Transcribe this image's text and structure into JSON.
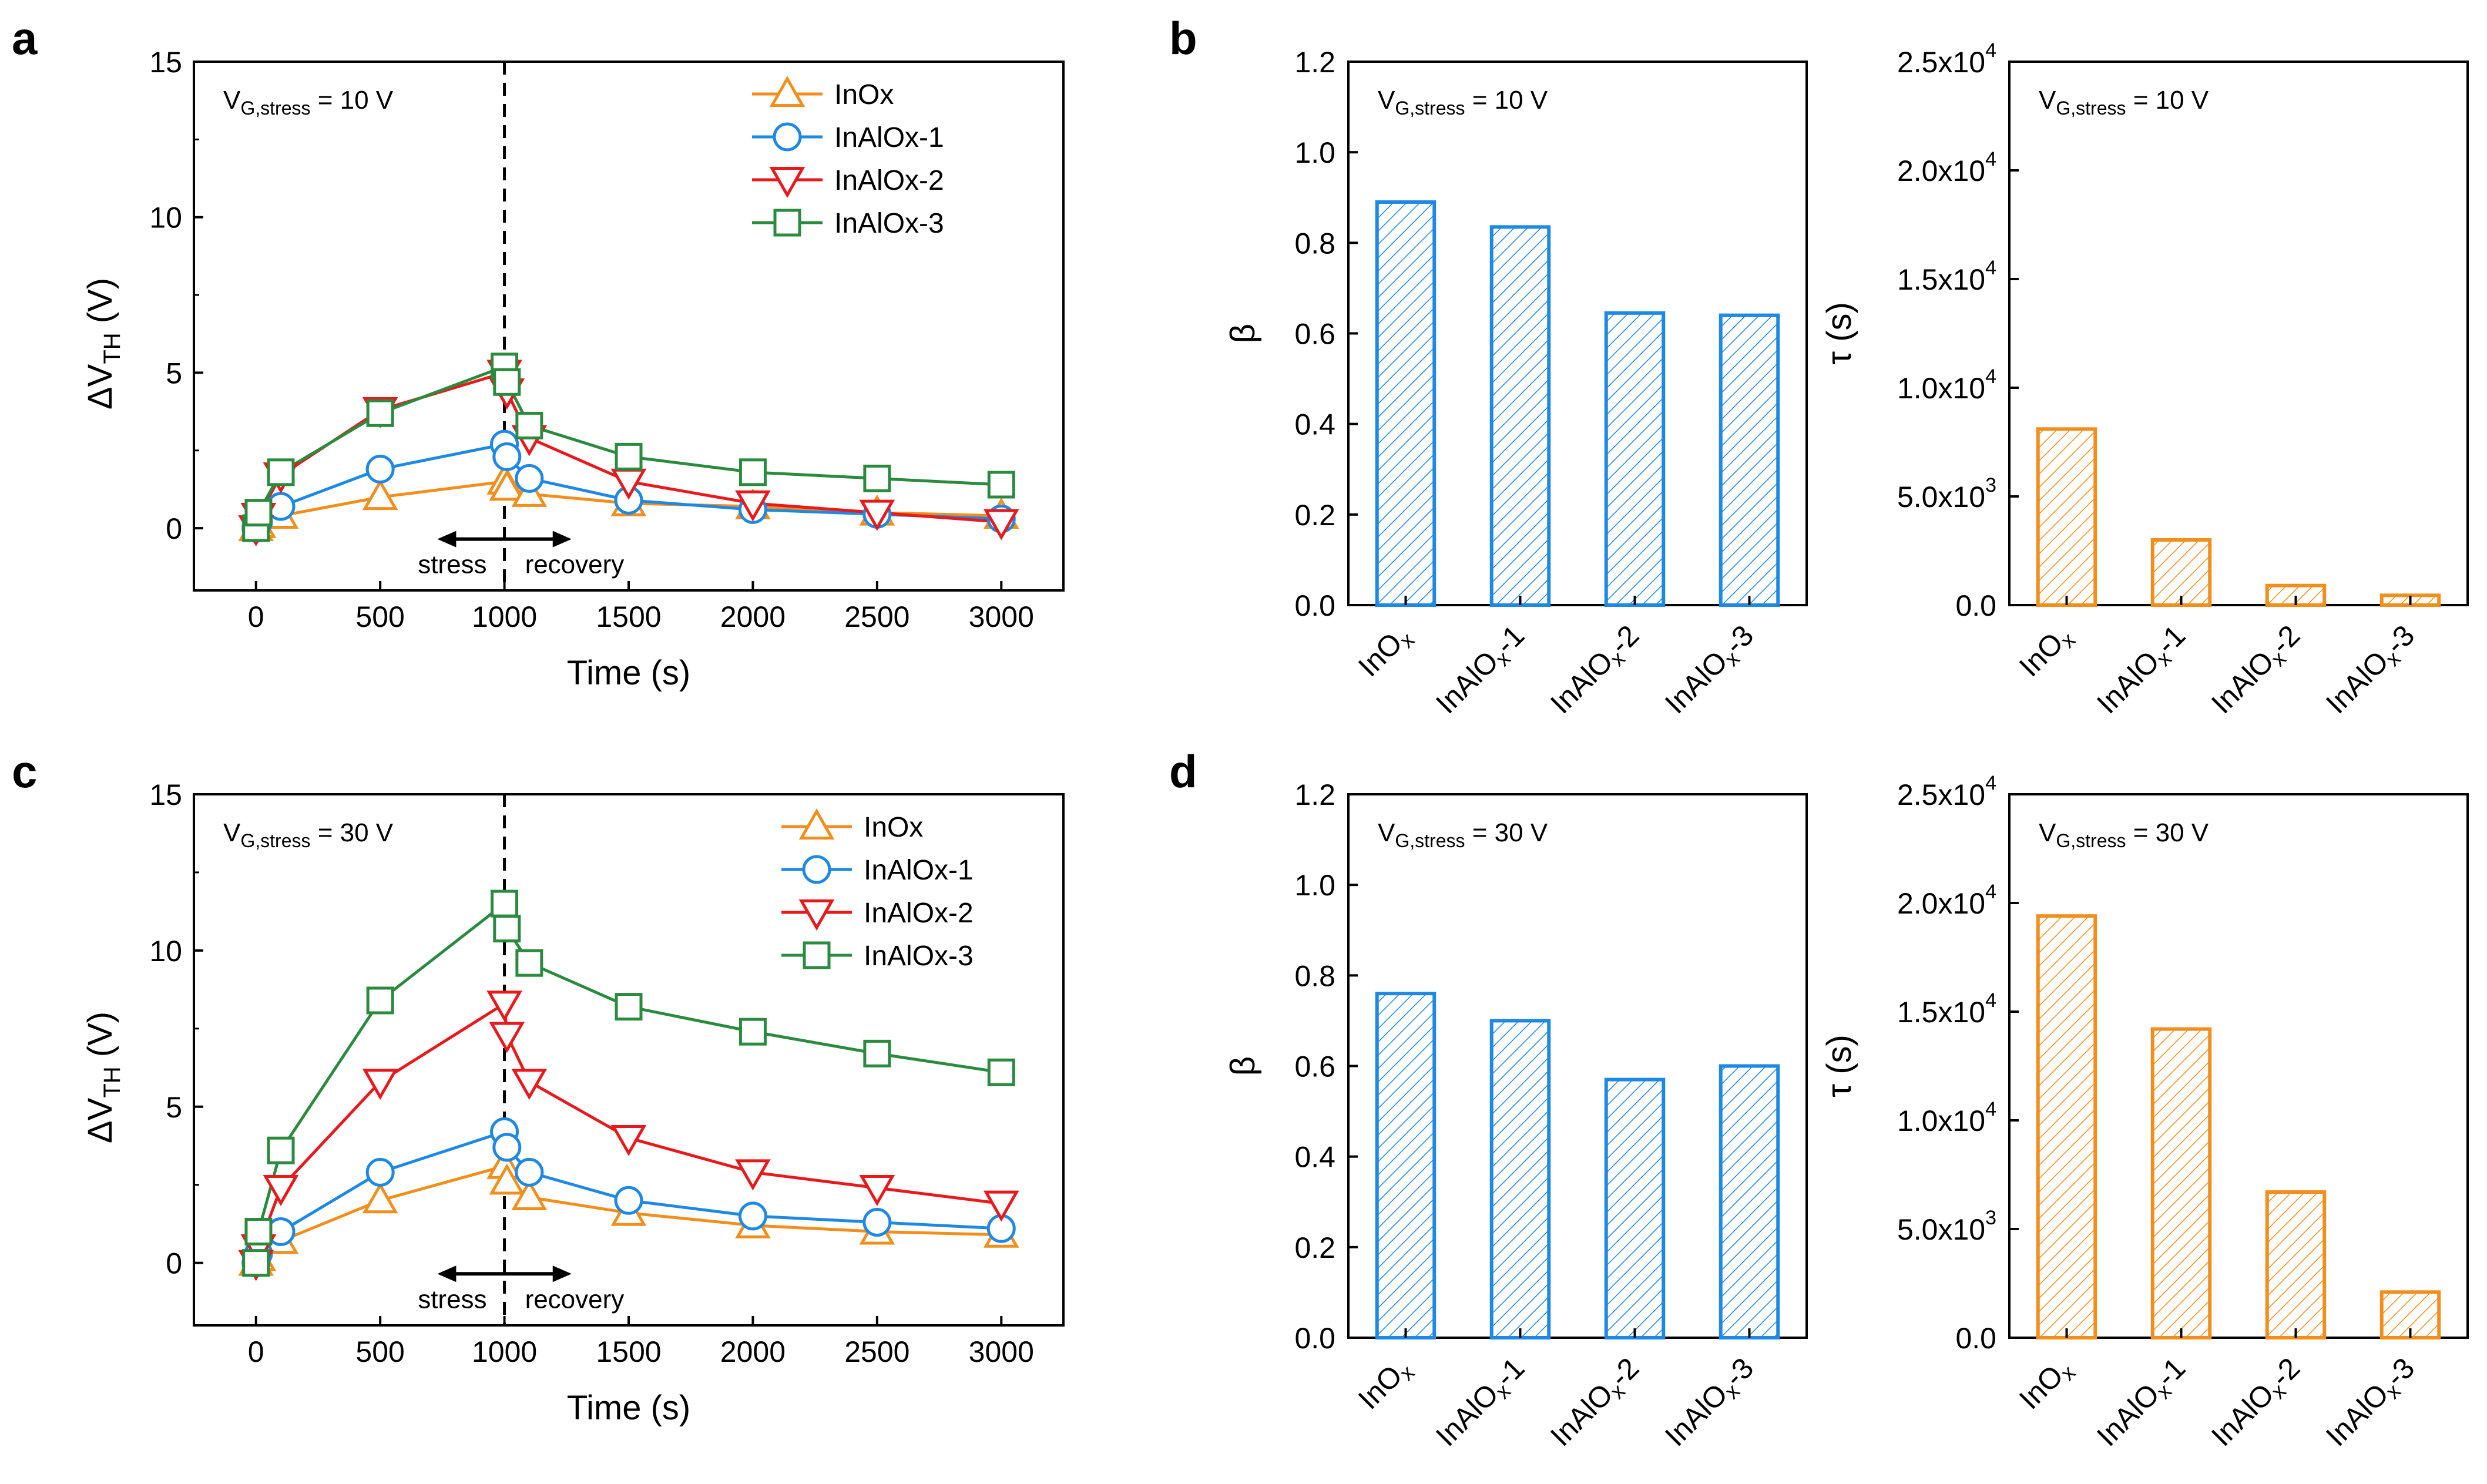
{
  "panel_labels": [
    "a",
    "b",
    "c",
    "d"
  ],
  "colors": {
    "InOx": "#f28e1c",
    "InAlOx-1": "#1e88e5",
    "InAlOx-2": "#e8191c",
    "InAlOx-3": "#2a8a3e",
    "beta_bar": "#1e88e5",
    "tau_bar": "#f28e1c"
  },
  "chart_data": [
    {
      "id": "a",
      "type": "line",
      "annotation_main": "V",
      "annotation_sub": "G,stress",
      "annotation_value": " = 10 V",
      "xlabel": "Time (s)",
      "ylabel_main": "ΔV",
      "ylabel_sub": "TH",
      "ylabel_unit": " (V)",
      "xlim": [
        -250,
        3250
      ],
      "ylim": [
        -2,
        15
      ],
      "xticks": [
        "0",
        "500",
        "1000",
        "1500",
        "2000",
        "2500",
        "3000"
      ],
      "xtick_values": [
        0,
        500,
        1000,
        1500,
        2000,
        2500,
        3000
      ],
      "yticks": [
        "0",
        "5",
        "10",
        "15"
      ],
      "ytick_values": [
        0,
        5,
        10,
        15
      ],
      "stress_label": "stress",
      "recovery_label": "recovery",
      "legend": [
        "InOx",
        "InAlOx-1",
        "InAlOx-2",
        "InAlOx-3"
      ],
      "series": [
        {
          "name": "InOx",
          "marker": "triangle-up",
          "x": [
            0,
            10,
            100,
            500,
            1000,
            1010,
            1100,
            1500,
            2000,
            2500,
            3000
          ],
          "y": [
            0,
            0.1,
            0.4,
            1.0,
            1.5,
            1.3,
            1.1,
            0.8,
            0.7,
            0.5,
            0.4
          ]
        },
        {
          "name": "InAlOx-1",
          "marker": "circle",
          "x": [
            0,
            10,
            100,
            500,
            1000,
            1010,
            1100,
            1500,
            2000,
            2500,
            3000
          ],
          "y": [
            0,
            0.2,
            0.7,
            1.9,
            2.7,
            2.3,
            1.6,
            0.9,
            0.6,
            0.45,
            0.3
          ]
        },
        {
          "name": "InAlOx-2",
          "marker": "triangle-down",
          "x": [
            0,
            10,
            100,
            500,
            1000,
            1010,
            1100,
            1500,
            2000,
            2500,
            3000
          ],
          "y": [
            0,
            0.4,
            1.7,
            3.8,
            5.0,
            4.4,
            2.9,
            1.5,
            0.8,
            0.5,
            0.2
          ]
        },
        {
          "name": "InAlOx-3",
          "marker": "square",
          "x": [
            0,
            10,
            100,
            500,
            1000,
            1010,
            1100,
            1500,
            2000,
            2500,
            3000
          ],
          "y": [
            0,
            0.5,
            1.8,
            3.7,
            5.2,
            4.7,
            3.3,
            2.3,
            1.8,
            1.6,
            1.4
          ]
        }
      ]
    },
    {
      "id": "b-beta",
      "type": "bar",
      "annotation_main": "V",
      "annotation_sub": "G,stress",
      "annotation_value": " = 10 V",
      "ylabel": "β",
      "ylim": [
        0,
        1.2
      ],
      "yticks": [
        "0.0",
        "0.2",
        "0.4",
        "0.6",
        "0.8",
        "1.0",
        "1.2"
      ],
      "ytick_values": [
        0,
        0.2,
        0.4,
        0.6,
        0.8,
        1.0,
        1.2
      ],
      "categories": [
        "InOx",
        "InAlOx-1",
        "InAlOx-2",
        "InAlOx-3"
      ],
      "cat_main": [
        "InO",
        "InAlO",
        "InAlO",
        "InAlO"
      ],
      "cat_sub": [
        "x",
        "x",
        "x",
        "x"
      ],
      "cat_suffix": [
        "",
        "-1",
        "-2",
        "-3"
      ],
      "values": [
        0.89,
        0.835,
        0.645,
        0.64
      ]
    },
    {
      "id": "b-tau",
      "type": "bar",
      "annotation_main": "V",
      "annotation_sub": "G,stress",
      "annotation_value": " = 10 V",
      "ylabel": "τ (s)",
      "ylim": [
        0,
        25000
      ],
      "yticks": [
        "0.0",
        "5.0x10",
        "1.0x10",
        "1.5x10",
        "2.0x10",
        "2.5x10"
      ],
      "ytick_exp": [
        "",
        "3",
        "4",
        "4",
        "4",
        "4"
      ],
      "ytick_values": [
        0,
        5000,
        10000,
        15000,
        20000,
        25000
      ],
      "categories": [
        "InOx",
        "InAlOx-1",
        "InAlOx-2",
        "InAlOx-3"
      ],
      "cat_main": [
        "InO",
        "InAlO",
        "InAlO",
        "InAlO"
      ],
      "cat_sub": [
        "x",
        "x",
        "x",
        "x"
      ],
      "cat_suffix": [
        "",
        "-1",
        "-2",
        "-3"
      ],
      "values": [
        8100,
        3000,
        900,
        450
      ]
    },
    {
      "id": "c",
      "type": "line",
      "annotation_main": "V",
      "annotation_sub": "G,stress",
      "annotation_value": " = 30 V",
      "xlabel": "Time (s)",
      "ylabel_main": "ΔV",
      "ylabel_sub": "TH",
      "ylabel_unit": " (V)",
      "xlim": [
        -250,
        3250
      ],
      "ylim": [
        -2,
        15
      ],
      "xticks": [
        "0",
        "500",
        "1000",
        "1500",
        "2000",
        "2500",
        "3000"
      ],
      "xtick_values": [
        0,
        500,
        1000,
        1500,
        2000,
        2500,
        3000
      ],
      "yticks": [
        "0",
        "5",
        "10",
        "15"
      ],
      "ytick_values": [
        0,
        5,
        10,
        15
      ],
      "stress_label": "stress",
      "recovery_label": "recovery",
      "legend": [
        "InOx",
        "InAlOx-1",
        "InAlOx-2",
        "InAlOx-3"
      ],
      "series": [
        {
          "name": "InOx",
          "marker": "triangle-up",
          "x": [
            0,
            10,
            100,
            500,
            1000,
            1010,
            1100,
            1500,
            2000,
            2500,
            3000
          ],
          "y": [
            0,
            0.15,
            0.7,
            2.0,
            3.1,
            2.6,
            2.1,
            1.6,
            1.2,
            1.0,
            0.9
          ]
        },
        {
          "name": "InAlOx-1",
          "marker": "circle",
          "x": [
            0,
            10,
            100,
            500,
            1000,
            1010,
            1100,
            1500,
            2000,
            2500,
            3000
          ],
          "y": [
            0,
            0.3,
            1.0,
            2.9,
            4.2,
            3.7,
            2.9,
            2.0,
            1.5,
            1.3,
            1.1
          ]
        },
        {
          "name": "InAlOx-2",
          "marker": "triangle-down",
          "x": [
            0,
            10,
            100,
            500,
            1000,
            1010,
            1100,
            1500,
            2000,
            2500,
            3000
          ],
          "y": [
            0,
            0.5,
            2.4,
            5.8,
            8.3,
            7.3,
            5.8,
            4.0,
            2.9,
            2.4,
            1.9
          ]
        },
        {
          "name": "InAlOx-3",
          "marker": "square",
          "x": [
            0,
            10,
            100,
            500,
            1000,
            1010,
            1100,
            1500,
            2000,
            2500,
            3000
          ],
          "y": [
            0,
            1.0,
            3.6,
            8.4,
            11.5,
            10.7,
            9.6,
            8.2,
            7.4,
            6.7,
            6.1
          ]
        }
      ]
    },
    {
      "id": "d-beta",
      "type": "bar",
      "annotation_main": "V",
      "annotation_sub": "G,stress",
      "annotation_value": " = 30 V",
      "ylabel": "β",
      "ylim": [
        0,
        1.2
      ],
      "yticks": [
        "0.0",
        "0.2",
        "0.4",
        "0.6",
        "0.8",
        "1.0",
        "1.2"
      ],
      "ytick_values": [
        0,
        0.2,
        0.4,
        0.6,
        0.8,
        1.0,
        1.2
      ],
      "categories": [
        "InOx",
        "InAlOx-1",
        "InAlOx-2",
        "InAlOx-3"
      ],
      "cat_main": [
        "InO",
        "InAlO",
        "InAlO",
        "InAlO"
      ],
      "cat_sub": [
        "x",
        "x",
        "x",
        "x"
      ],
      "cat_suffix": [
        "",
        "-1",
        "-2",
        "-3"
      ],
      "values": [
        0.76,
        0.7,
        0.57,
        0.6
      ]
    },
    {
      "id": "d-tau",
      "type": "bar",
      "annotation_main": "V",
      "annotation_sub": "G,stress",
      "annotation_value": " = 30 V",
      "ylabel": "τ (s)",
      "ylim": [
        0,
        25000
      ],
      "yticks": [
        "0.0",
        "5.0x10",
        "1.0x10",
        "1.5x10",
        "2.0x10",
        "2.5x10"
      ],
      "ytick_exp": [
        "",
        "3",
        "4",
        "4",
        "4",
        "4"
      ],
      "ytick_values": [
        0,
        5000,
        10000,
        15000,
        20000,
        25000
      ],
      "categories": [
        "InOx",
        "InAlOx-1",
        "InAlOx-2",
        "InAlOx-3"
      ],
      "cat_main": [
        "InO",
        "InAlO",
        "InAlO",
        "InAlO"
      ],
      "cat_sub": [
        "x",
        "x",
        "x",
        "x"
      ],
      "cat_suffix": [
        "",
        "-1",
        "-2",
        "-3"
      ],
      "values": [
        19400,
        14200,
        6700,
        2100
      ]
    }
  ]
}
